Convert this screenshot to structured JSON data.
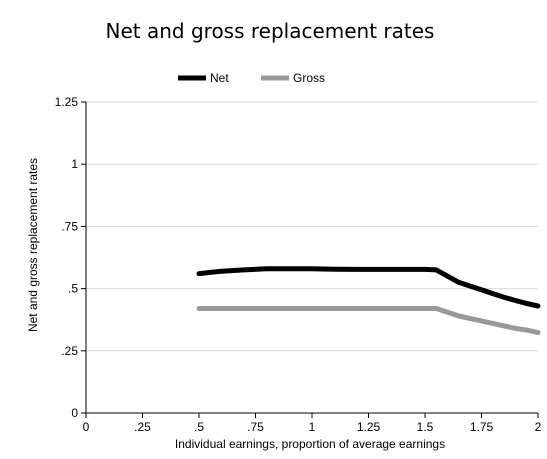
{
  "chart_data": {
    "type": "line",
    "title": "Net and gross replacement rates",
    "xlabel": "Individual earnings, proportion of average earnings",
    "ylabel": "Net and gross replacement rates",
    "xlim": [
      0,
      2
    ],
    "ylim": [
      0,
      1.25
    ],
    "x_ticks": [
      "0",
      ".25",
      ".5",
      ".75",
      "1",
      "1.25",
      "1.5",
      "1.75",
      "2"
    ],
    "y_ticks": [
      "0",
      ".25",
      ".5",
      ".75",
      "1",
      "1.25"
    ],
    "grid": "horizontal",
    "legend_position": "top-center",
    "series": [
      {
        "name": "Net",
        "color": "#000000",
        "x": [
          0.5,
          0.55,
          0.6,
          0.7,
          0.8,
          0.9,
          1.0,
          1.1,
          1.2,
          1.3,
          1.4,
          1.5,
          1.55,
          1.6,
          1.65,
          1.7,
          1.75,
          1.8,
          1.85,
          1.9,
          1.95,
          2.0
        ],
        "y": [
          0.56,
          0.565,
          0.57,
          0.575,
          0.58,
          0.58,
          0.58,
          0.578,
          0.577,
          0.577,
          0.577,
          0.577,
          0.575,
          0.55,
          0.525,
          0.51,
          0.495,
          0.48,
          0.465,
          0.452,
          0.44,
          0.43
        ]
      },
      {
        "name": "Gross",
        "color": "#999999",
        "x": [
          0.5,
          0.6,
          0.7,
          0.8,
          0.9,
          1.0,
          1.1,
          1.2,
          1.3,
          1.4,
          1.5,
          1.55,
          1.6,
          1.65,
          1.7,
          1.75,
          1.8,
          1.85,
          1.9,
          1.95,
          2.0
        ],
        "y": [
          0.42,
          0.42,
          0.42,
          0.42,
          0.42,
          0.42,
          0.42,
          0.42,
          0.42,
          0.42,
          0.42,
          0.42,
          0.405,
          0.39,
          0.38,
          0.37,
          0.36,
          0.35,
          0.34,
          0.333,
          0.323
        ]
      }
    ]
  }
}
